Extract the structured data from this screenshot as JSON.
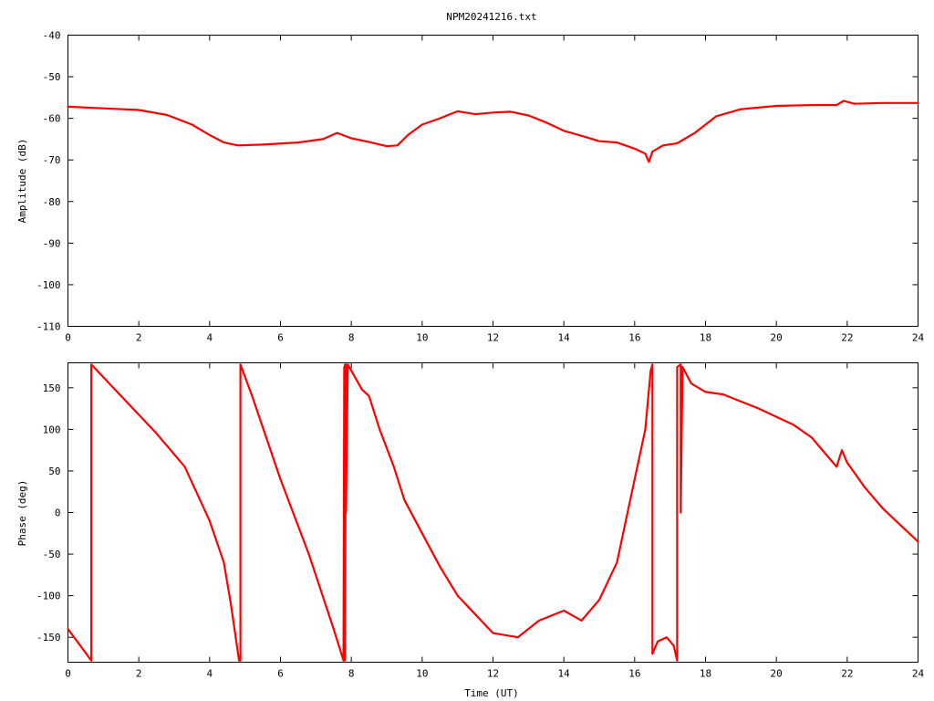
{
  "title": "NPM20241216.txt",
  "colors": {
    "series": "#ff0000",
    "axes": "#000000",
    "background": "#ffffff"
  },
  "chart_data": [
    {
      "type": "line",
      "name": "amplitude",
      "title": "NPM20241216.txt",
      "xlabel": "",
      "ylabel": "Amplitude (dB)",
      "xlim": [
        0,
        24
      ],
      "ylim": [
        -110,
        -40
      ],
      "xticks": [
        "0",
        "2",
        "4",
        "6",
        "8",
        "10",
        "12",
        "14",
        "16",
        "18",
        "20",
        "22",
        "24"
      ],
      "yticks": [
        "-40",
        "-50",
        "-60",
        "-70",
        "-80",
        "-90",
        "-100",
        "-110"
      ],
      "grid": false,
      "legend": "none",
      "series": [
        {
          "x": [
            0,
            1,
            2,
            2.8,
            3.5,
            4.0,
            4.4,
            4.8,
            5.5,
            6.5,
            7.2,
            7.6,
            8.0,
            8.5,
            9.0,
            9.3,
            9.6,
            10.0,
            10.5,
            11.0,
            11.5,
            12.0,
            12.5,
            13.0,
            13.5,
            14.0,
            14.5,
            15.0,
            15.5,
            16.0,
            16.3,
            16.4,
            16.5,
            16.8,
            17.2,
            17.7,
            18.3,
            19.0,
            20.0,
            21.0,
            21.7,
            21.9,
            22.2,
            23.0,
            24.0
          ],
          "y": [
            -57.2,
            -57.6,
            -58.0,
            -59.2,
            -61.5,
            -64.0,
            -65.8,
            -66.5,
            -66.3,
            -65.8,
            -65.0,
            -63.5,
            -64.8,
            -65.7,
            -66.7,
            -66.5,
            -64.0,
            -61.5,
            -60.0,
            -58.3,
            -59.0,
            -58.6,
            -58.4,
            -59.3,
            -61.0,
            -63.0,
            -64.2,
            -65.5,
            -65.8,
            -67.3,
            -68.5,
            -70.5,
            -68.0,
            -66.5,
            -66.0,
            -63.5,
            -59.5,
            -57.8,
            -57.0,
            -56.8,
            -56.8,
            -55.8,
            -56.5,
            -56.3,
            -56.3
          ]
        }
      ]
    },
    {
      "type": "line",
      "name": "phase",
      "title": "",
      "xlabel": "Time (UT)",
      "ylabel": "Phase (deg)",
      "xlim": [
        0,
        24
      ],
      "ylim": [
        -180,
        180
      ],
      "xticks": [
        "0",
        "2",
        "4",
        "6",
        "8",
        "10",
        "12",
        "14",
        "16",
        "18",
        "20",
        "22",
        "24"
      ],
      "yticks": [
        "150",
        "100",
        "50",
        "0",
        "-50",
        "-100",
        "-150"
      ],
      "grid": false,
      "legend": "none",
      "series": [
        {
          "x": [
            0,
            0.66,
            0.66,
            0.66,
            1.5,
            2.5,
            3.3,
            4.0,
            4.4,
            4.6,
            4.83,
            4.87,
            4.87,
            4.87,
            5.2,
            6.0,
            6.8,
            7.5,
            7.78,
            7.8,
            7.8,
            7.82,
            7.82,
            7.85,
            7.85,
            7.9,
            8.3,
            8.5,
            8.8,
            9.2,
            9.5,
            10.0,
            10.5,
            11.0,
            12.0,
            12.7,
            13.3,
            14.0,
            14.5,
            15.0,
            15.5,
            16.0,
            16.3,
            16.45,
            16.5,
            16.5,
            16.65,
            16.9,
            17.1,
            17.2,
            17.2,
            17.3,
            17.3,
            17.35,
            17.6,
            18.0,
            18.5,
            19.5,
            20.5,
            21.0,
            21.7,
            21.85,
            22.0,
            22.5,
            23.0,
            23.5,
            24.0
          ],
          "y": [
            -140,
            -178,
            0,
            178,
            140,
            95,
            55,
            -10,
            -60,
            -110,
            -178,
            -178,
            0,
            178,
            140,
            40,
            -50,
            -140,
            -178,
            175,
            -175,
            178,
            -178,
            178,
            0,
            178,
            148,
            140,
            100,
            55,
            15,
            -25,
            -65,
            -100,
            -145,
            -150,
            -130,
            -118,
            -130,
            -105,
            -60,
            40,
            100,
            170,
            178,
            -170,
            -155,
            -150,
            -160,
            -178,
            175,
            178,
            0,
            175,
            155,
            145,
            142,
            125,
            105,
            90,
            55,
            75,
            60,
            30,
            5,
            -15,
            -35
          ]
        }
      ]
    }
  ]
}
